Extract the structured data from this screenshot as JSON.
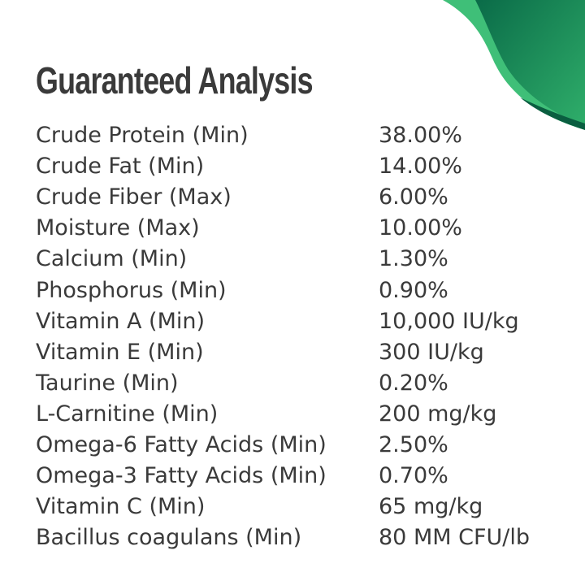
{
  "title": "Guaranteed Analysis",
  "colors": {
    "accent_dark": "#0a6b48",
    "accent_light": "#3fbf78",
    "text": "#3a3a3a"
  },
  "rows": [
    {
      "name": "Crude Protein (Min)",
      "value": "38.00%"
    },
    {
      "name": "Crude Fat (Min)",
      "value": "14.00%"
    },
    {
      "name": "Crude Fiber (Max)",
      "value": "6.00%"
    },
    {
      "name": "Moisture (Max)",
      "value": "10.00%"
    },
    {
      "name": "Calcium (Min)",
      "value": "1.30%"
    },
    {
      "name": "Phosphorus (Min)",
      "value": "0.90%"
    },
    {
      "name": "Vitamin A (Min)",
      "value": "10,000 IU/kg"
    },
    {
      "name": "Vitamin E (Min)",
      "value": "300 IU/kg"
    },
    {
      "name": "Taurine (Min)",
      "value": "0.20%"
    },
    {
      "name": "L-Carnitine (Min)",
      "value": "200 mg/kg"
    },
    {
      "name": "Omega-6 Fatty Acids (Min)",
      "value": "2.50%"
    },
    {
      "name": "Omega-3 Fatty Acids (Min)",
      "value": "0.70%"
    },
    {
      "name": "Vitamin C (Min)",
      "value": "65 mg/kg"
    },
    {
      "name": "Bacillus coagulans (Min)",
      "value": "80 MM CFU/lb"
    }
  ]
}
